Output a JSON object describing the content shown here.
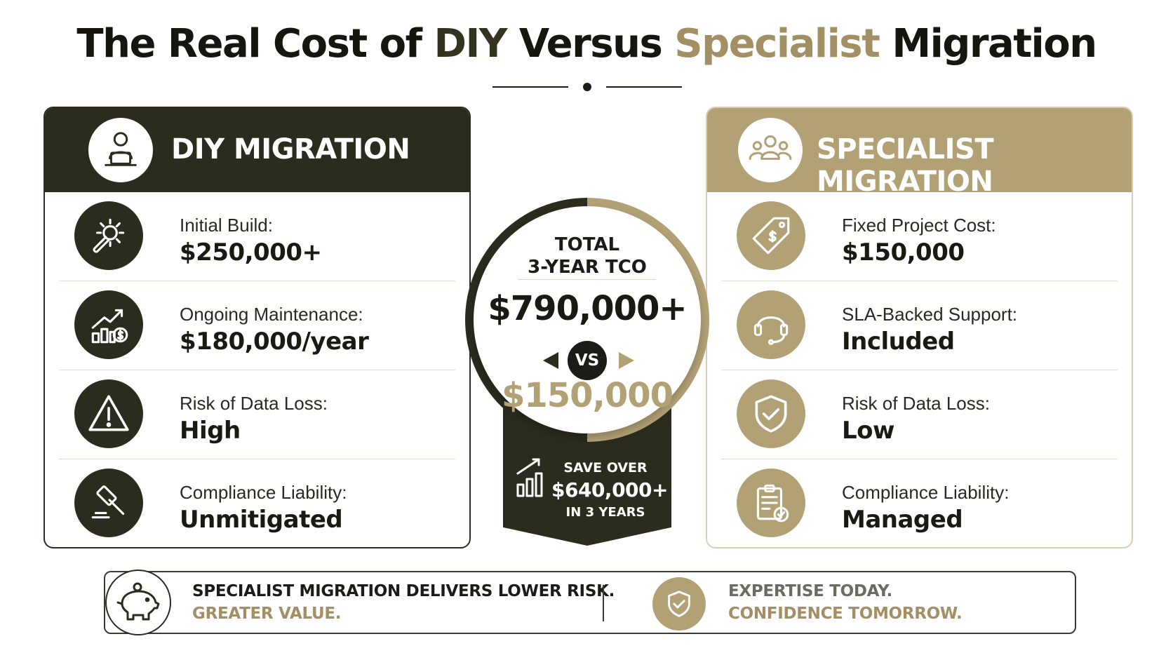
{
  "title": {
    "part1": "The Real Cost of ",
    "part2": "DIY",
    "part3": " Versus ",
    "part4": "Specialist",
    "part5": " Migration"
  },
  "colors": {
    "dark": "#2b2b1e",
    "gold": "#b3a176",
    "gold_text": "#a28f63",
    "text": "#1c1c17"
  },
  "diy": {
    "title": "DIY MIGRATION",
    "icon": "person-laptop-icon",
    "rows": [
      {
        "label": "Initial Build:",
        "value": "$250,000+",
        "icon": "gear-wrench-icon"
      },
      {
        "label": "Ongoing Maintenance:",
        "value": "$180,000/year",
        "icon": "chart-dollar-icon"
      },
      {
        "label": "Risk of Data Loss:",
        "value": "High",
        "icon": "warning-triangle-icon"
      },
      {
        "label": "Compliance Liability:",
        "value": "Unmitigated",
        "icon": "gavel-icon"
      }
    ]
  },
  "specialist": {
    "title": "SPECIALIST MIGRATION",
    "icon": "team-icon",
    "rows": [
      {
        "label": "Fixed Project Cost:",
        "value": "$150,000",
        "icon": "price-tag-icon"
      },
      {
        "label": "SLA-Backed Support:",
        "value": "Included",
        "icon": "headset-icon"
      },
      {
        "label": "Risk of Data Loss:",
        "value": "Low",
        "icon": "shield-check-icon"
      },
      {
        "label": "Compliance Liability:",
        "value": "Managed",
        "icon": "clipboard-check-icon"
      }
    ]
  },
  "center": {
    "label_line1": "TOTAL",
    "label_line2": "3-YEAR TCO",
    "diy_total": "$790,000+",
    "vs": "VS",
    "specialist_total": "$150,000",
    "save_top": "SAVE OVER",
    "save_value": "$640,000+",
    "save_bottom": "IN 3 YEARS"
  },
  "banner": {
    "left_line1": "SPECIALIST MIGRATION DELIVERS LOWER RISK.",
    "left_line2": "GREATER VALUE.",
    "right_line1": "EXPERTISE TODAY.",
    "right_line2": "CONFIDENCE TOMORROW.",
    "left_icon": "piggy-bank-icon",
    "right_icon": "shield-check-icon"
  }
}
